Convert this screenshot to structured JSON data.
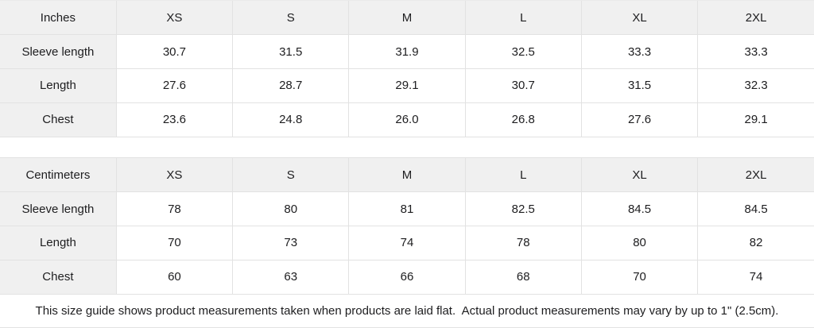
{
  "colors": {
    "cell_gray_bg": "#f0f0f0",
    "border": "#e2e2e2",
    "text": "#1d1d1f",
    "background": "#ffffff"
  },
  "tables": [
    {
      "unit_label": "Inches",
      "sizes": [
        "XS",
        "S",
        "M",
        "L",
        "XL",
        "2XL"
      ],
      "rows": [
        {
          "label": "Sleeve length",
          "values": [
            "30.7",
            "31.5",
            "31.9",
            "32.5",
            "33.3",
            "33.3"
          ]
        },
        {
          "label": "Length",
          "values": [
            "27.6",
            "28.7",
            "29.1",
            "30.7",
            "31.5",
            "32.3"
          ]
        },
        {
          "label": "Chest",
          "values": [
            "23.6",
            "24.8",
            "26.0",
            "26.8",
            "27.6",
            "29.1"
          ]
        }
      ]
    },
    {
      "unit_label": "Centimeters",
      "sizes": [
        "XS",
        "S",
        "M",
        "L",
        "XL",
        "2XL"
      ],
      "rows": [
        {
          "label": "Sleeve length",
          "values": [
            "78",
            "80",
            "81",
            "82.5",
            "84.5",
            "84.5"
          ]
        },
        {
          "label": "Length",
          "values": [
            "70",
            "73",
            "74",
            "78",
            "80",
            "82"
          ]
        },
        {
          "label": "Chest",
          "values": [
            "60",
            "63",
            "66",
            "68",
            "70",
            "74"
          ]
        }
      ]
    }
  ],
  "footer": {
    "note": "This size guide shows product measurements taken when products are laid flat.  Actual product measurements may vary by up to 1\" (2.5cm)."
  }
}
